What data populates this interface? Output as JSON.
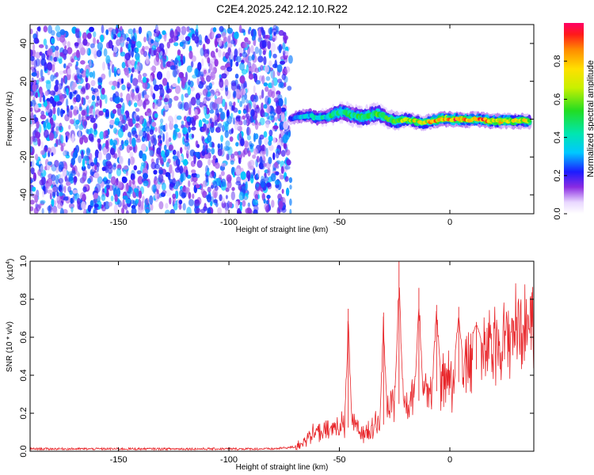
{
  "title": "C2E4.2025.242.12.10.R22",
  "chart_data": [
    {
      "type": "heatmap",
      "title": "C2E4.2025.242.12.10.R22",
      "xlabel": "Height of straight line (km)",
      "ylabel": "Frequency (Hz)",
      "xlim": [
        -190,
        38
      ],
      "ylim": [
        -50,
        50
      ],
      "x_ticks": [
        -150,
        -100,
        -50,
        0
      ],
      "y_ticks": [
        -40,
        -20,
        0,
        20,
        40
      ],
      "grid": false,
      "noise_region": {
        "x_range": [
          -190,
          -72
        ],
        "y_range": [
          -50,
          48
        ],
        "level": 0.15
      },
      "signal_ridge": {
        "x": [
          -72,
          -68,
          -64,
          -60,
          -56,
          -52,
          -48,
          -44,
          -40,
          -36,
          -32,
          -28,
          -24,
          -20,
          -16,
          -12,
          -8,
          -4,
          0,
          4,
          8,
          12,
          16,
          20,
          24,
          28,
          32,
          36
        ],
        "y": [
          0,
          1.5,
          2,
          0.5,
          1,
          3,
          4,
          2,
          1,
          2,
          3,
          0,
          -1,
          0,
          -1,
          -2,
          -1,
          0,
          0,
          0,
          -0.5,
          0,
          -0.5,
          -1,
          -1,
          -1,
          -1,
          -1
        ],
        "amplitude": [
          0.2,
          0.3,
          0.35,
          0.4,
          0.4,
          0.45,
          0.45,
          0.45,
          0.5,
          0.5,
          0.5,
          0.55,
          0.6,
          0.65,
          0.7,
          0.72,
          0.75,
          0.8,
          0.9,
          0.85,
          0.85,
          0.8,
          0.8,
          0.78,
          0.75,
          0.7,
          0.7,
          0.65
        ],
        "width_hz": [
          4,
          5,
          5,
          5,
          5,
          6,
          6,
          6,
          6,
          6,
          6,
          5,
          5,
          4,
          4,
          4,
          4,
          4,
          4,
          4,
          4,
          4,
          4,
          4,
          4,
          4,
          4,
          4
        ]
      },
      "colorbar": {
        "label": "Normalized spectral amplitude",
        "range": [
          0,
          1
        ],
        "ticks": [
          0.0,
          0.2,
          0.4,
          0.6,
          0.8
        ]
      }
    },
    {
      "type": "line",
      "xlabel": "Height of straight line (km)",
      "ylabel": "SNR (10 * v/v)",
      "scale_label": "(x10",
      "scale_exponent": "4",
      "scale_close": ")",
      "xlim": [
        -190,
        38
      ],
      "ylim": [
        0,
        1.0
      ],
      "x_ticks": [
        -150,
        -100,
        -50,
        0
      ],
      "y_ticks": [
        0.0,
        0.2,
        0.4,
        0.6,
        0.8,
        1.0
      ],
      "grid": false,
      "series": [
        {
          "color": "#e8262a",
          "x": [
            -190,
            -180,
            -170,
            -160,
            -150,
            -140,
            -130,
            -120,
            -110,
            -100,
            -90,
            -80,
            -70,
            -65,
            -60,
            -55,
            -50,
            -45,
            -40,
            -35,
            -30,
            -25,
            -20,
            -15,
            -10,
            -5,
            0,
            5,
            10,
            15,
            20,
            25,
            30,
            35,
            38
          ],
          "y": [
            0.01,
            0.01,
            0.01,
            0.01,
            0.01,
            0.01,
            0.01,
            0.01,
            0.01,
            0.01,
            0.01,
            0.01,
            0.02,
            0.09,
            0.12,
            0.13,
            0.17,
            0.18,
            0.12,
            0.17,
            0.2,
            0.38,
            0.32,
            0.37,
            0.42,
            0.46,
            0.48,
            0.53,
            0.6,
            0.64,
            0.71,
            0.75,
            0.8,
            0.83,
            0.84
          ]
        }
      ],
      "peaks": [
        {
          "x": -46,
          "y": 0.75
        },
        {
          "x": -30,
          "y": 0.73
        },
        {
          "x": -23,
          "y": 1.0
        },
        {
          "x": -14,
          "y": 0.86
        },
        {
          "x": -6,
          "y": 0.77
        },
        {
          "x": 4,
          "y": 0.76
        },
        {
          "x": 12,
          "y": 0.68
        }
      ]
    }
  ]
}
